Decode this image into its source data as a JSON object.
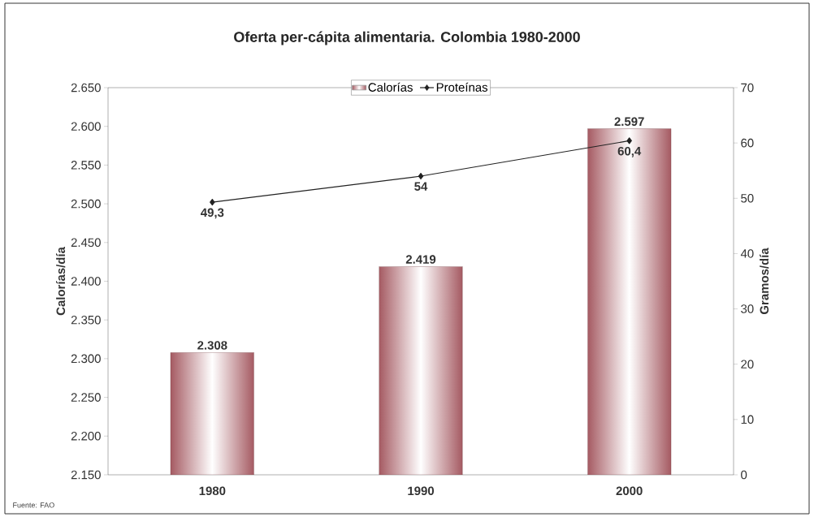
{
  "chart_data": {
    "type": "bar",
    "title": "Oferta per-cápita alimentaria. Colombia 1980-2000",
    "categories": [
      "1980",
      "1990",
      "2000"
    ],
    "series": [
      {
        "name": "Calorías",
        "color": "#a55a62",
        "values": [
          2308,
          2419,
          2597
        ],
        "value_labels": [
          "2.308",
          "2.419",
          "2.597"
        ]
      },
      {
        "name": "Proteínas",
        "type": "line",
        "axis": "y2",
        "color": "#222222",
        "values": [
          49.3,
          54,
          60.4
        ],
        "value_labels": [
          "49,3",
          "54",
          "60,4"
        ]
      }
    ],
    "ylabel": "Calorías/día",
    "y2label": "Gramos/día",
    "ylim": [
      2150,
      2650
    ],
    "yticks": [
      {
        "value": 2150,
        "label": "2.150"
      },
      {
        "value": 2200,
        "label": "2.200"
      },
      {
        "value": 2250,
        "label": "2.250"
      },
      {
        "value": 2300,
        "label": "2.300"
      },
      {
        "value": 2350,
        "label": "2.350"
      },
      {
        "value": 2400,
        "label": "2.400"
      },
      {
        "value": 2450,
        "label": "2.450"
      },
      {
        "value": 2500,
        "label": "2.500"
      },
      {
        "value": 2550,
        "label": "2.550"
      },
      {
        "value": 2600,
        "label": "2.600"
      },
      {
        "value": 2650,
        "label": "2.650"
      }
    ],
    "y2lim": [
      0,
      70
    ],
    "y2ticks": [
      0,
      10,
      20,
      30,
      40,
      50,
      60,
      70
    ],
    "marker": "diamond",
    "legend": "top",
    "annotations": [
      "Fuente: FAO"
    ]
  }
}
